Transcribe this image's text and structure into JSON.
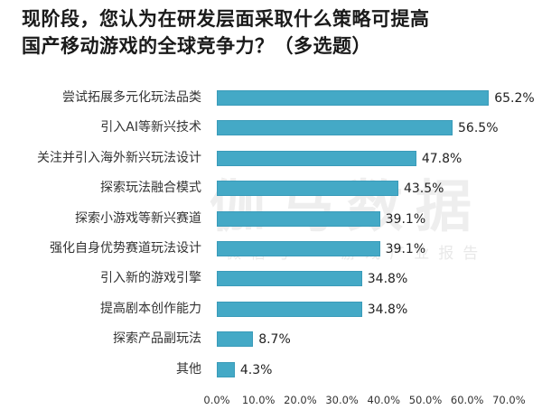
{
  "title": "现阶段，您认为在研发层面采取什么策略可提高国产移动游戏的全球竞争力？（多选题）",
  "title_lines": [
    "现阶段，您认为在研发层面采取什么策略可提高",
    "国产移动游戏的全球竞争力？（多选题）"
  ],
  "watermark": {
    "main": "伽马数据",
    "sub": "微信号 · 游戏产业报告"
  },
  "colors": {
    "bar": "#44a9c6",
    "text": "#222222",
    "background": "#ffffff"
  },
  "chart_data": {
    "type": "bar",
    "orientation": "horizontal",
    "title": "现阶段，您认为在研发层面采取什么策略可提高国产移动游戏的全球竞争力？（多选题）",
    "xlabel": "",
    "ylabel": "",
    "categories": [
      "尝试拓展多元化玩法品类",
      "引入AI等新兴技术",
      "关注并引入海外新兴玩法设计",
      "探索玩法融合模式",
      "探索小游戏等新兴赛道",
      "强化自身优势赛道玩法设计",
      "引入新的游戏引擎",
      "提高剧本创作能力",
      "探索产品副玩法",
      "其他"
    ],
    "values": [
      65.2,
      56.5,
      47.8,
      43.5,
      39.1,
      39.1,
      34.8,
      34.8,
      8.7,
      4.3
    ],
    "value_labels": [
      "65.2%",
      "56.5%",
      "47.8%",
      "43.5%",
      "39.1%",
      "39.1%",
      "34.8%",
      "34.8%",
      "8.7%",
      "4.3%"
    ],
    "xlim": [
      0,
      70
    ],
    "xticks": [
      "0.0%",
      "10.0%",
      "20.0%",
      "30.0%",
      "40.0%",
      "50.0%",
      "60.0%",
      "70.0%"
    ],
    "grid": false,
    "legend": null,
    "unit": "%"
  }
}
